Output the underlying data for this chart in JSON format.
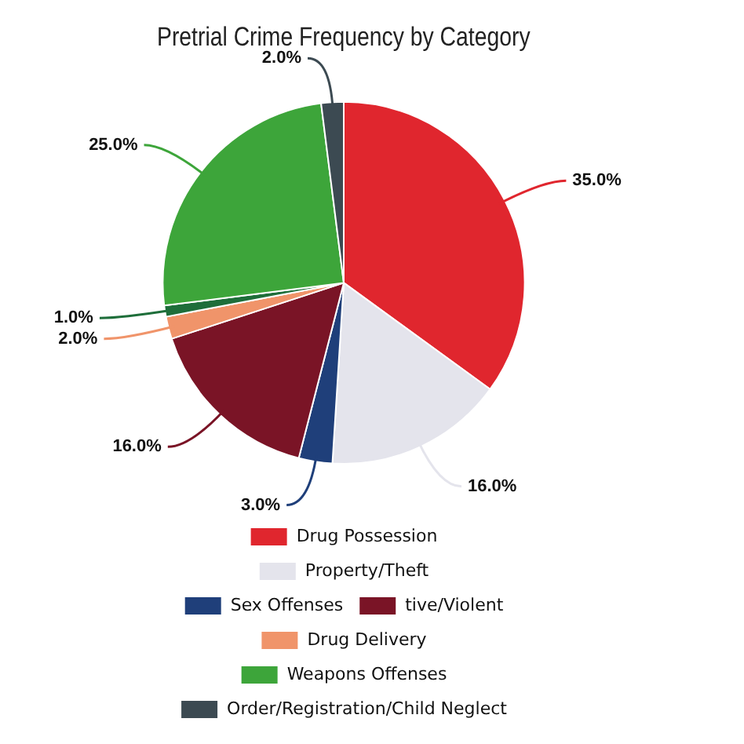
{
  "chart_data": {
    "type": "pie",
    "title": "Pretrial Crime Frequency by Category",
    "categories": [
      "Drug Possession",
      "Property/Theft",
      "Sex Offenses",
      "tive/Violent",
      "Drug Delivery",
      null,
      "Weapons Offenses",
      "Order/Registration/Child Neglect"
    ],
    "values": [
      35,
      16,
      3,
      16,
      2,
      1,
      25,
      2
    ],
    "colors": [
      "#e0262e",
      "#e4e4ec",
      "#1f3f7a",
      "#7a1426",
      "#f0946a",
      "#1e6e3a",
      "#3da53a",
      "#3c4a52"
    ],
    "value_labels": [
      "35.0%",
      "16.0%",
      "3.0%",
      "16.0%",
      "2.0%",
      "1.0%",
      "25.0%",
      "2.0%"
    ],
    "legend": "bottom"
  }
}
